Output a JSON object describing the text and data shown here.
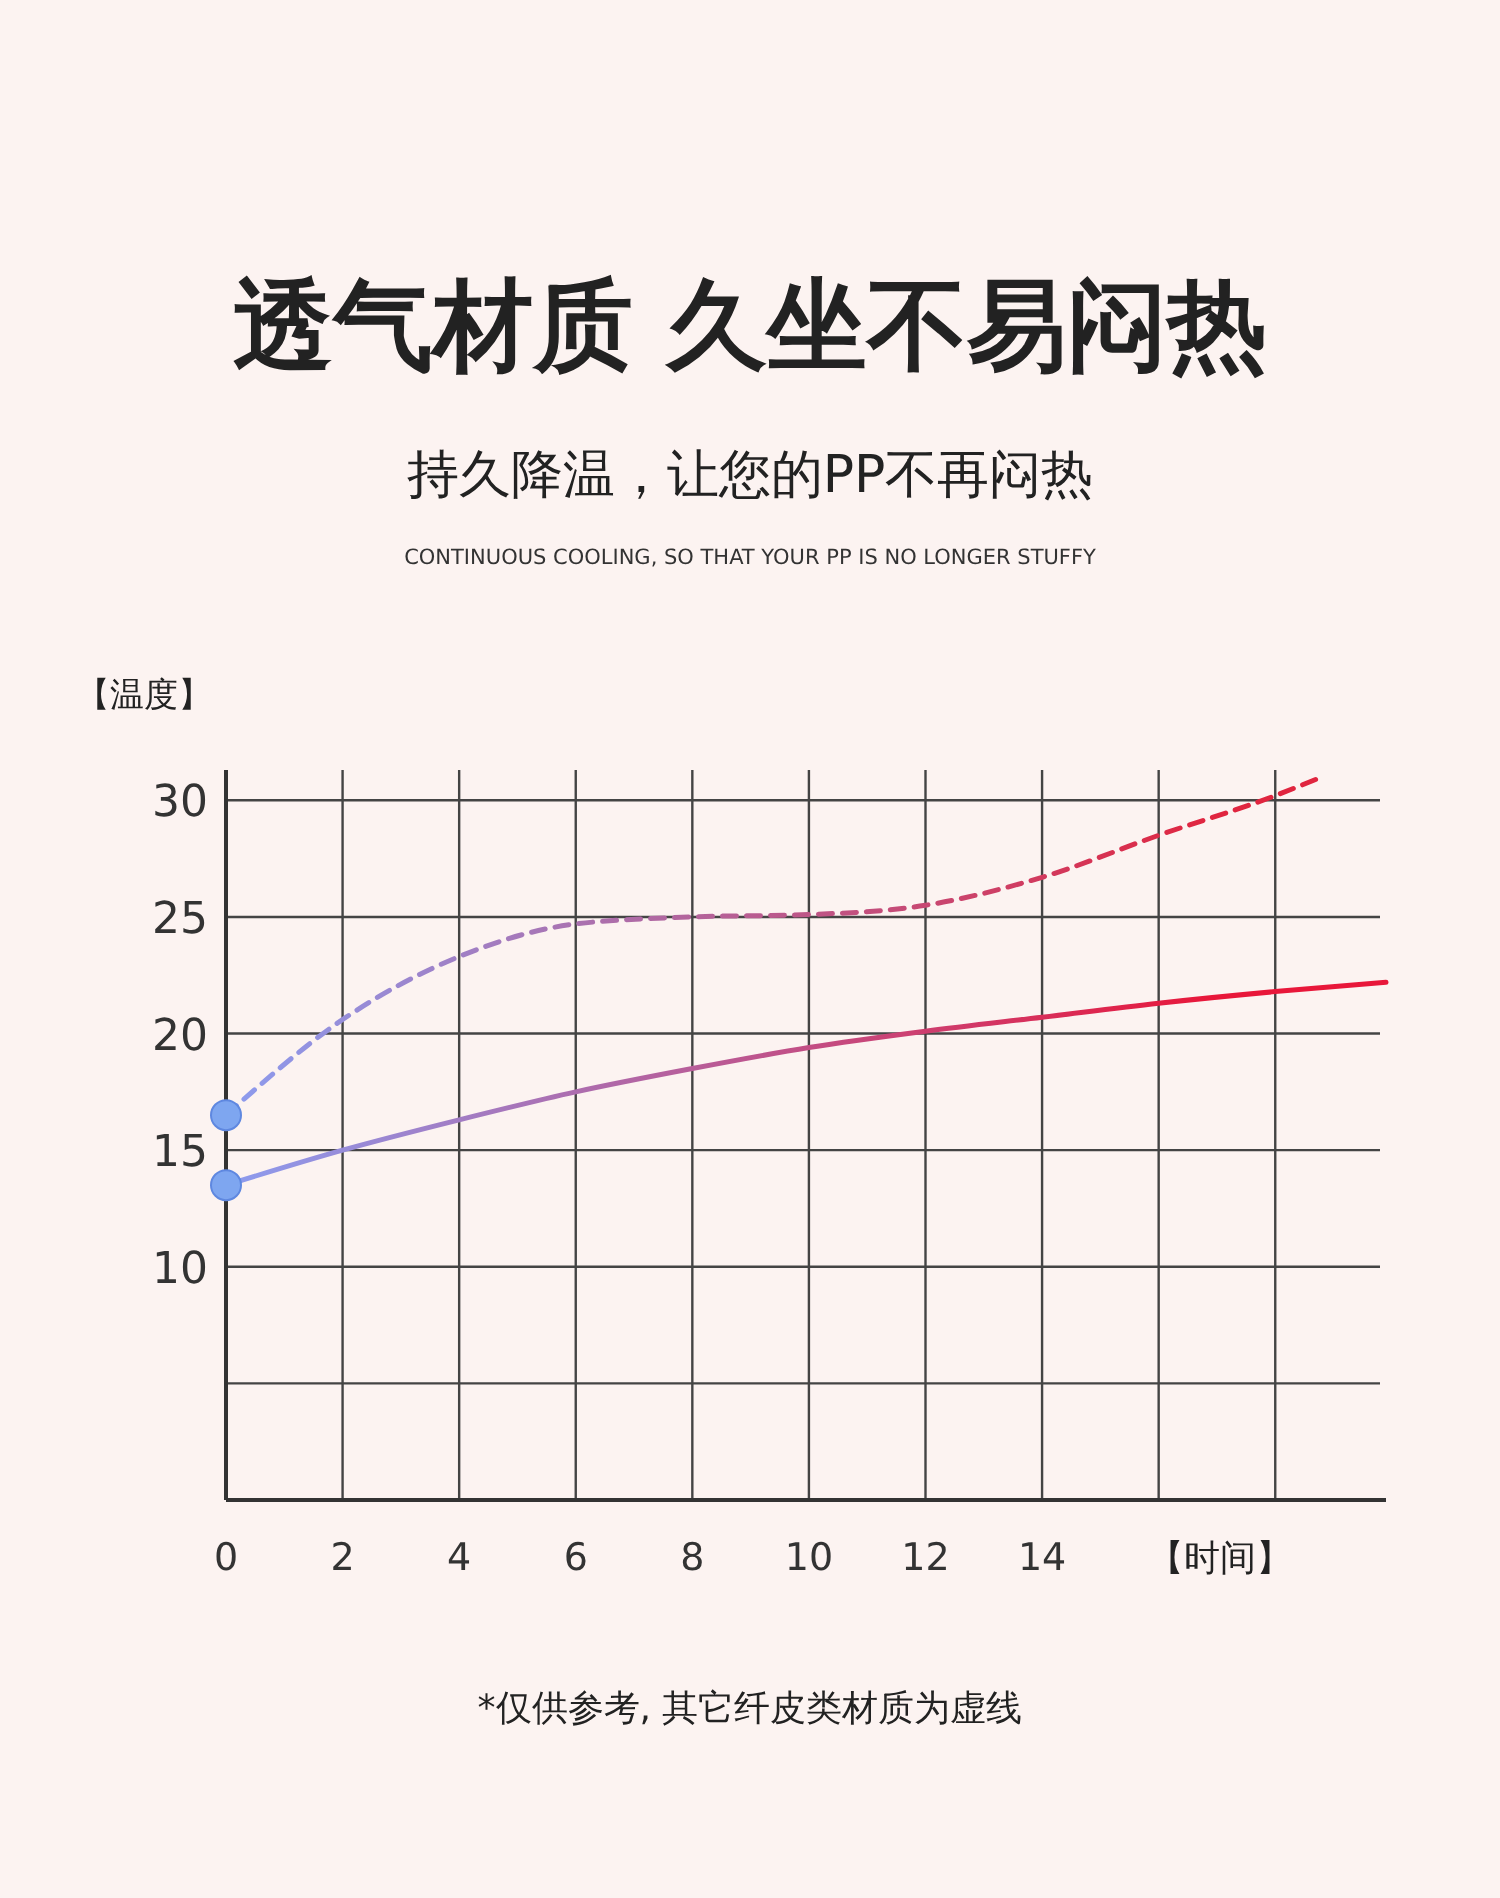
{
  "chart_data": {
    "type": "line",
    "title": "透气材质 久坐不易闷热",
    "subtitle": "持久降温，让您的PP不再闷热",
    "annotations": [
      "CONTINUOUS COOLING, SO THAT YOUR PP IS NO LONGER STUFFY",
      "*仅供参考, 其它纤皮类材质为虚线"
    ],
    "xlabel": "【时间】",
    "ylabel": "【温度】",
    "xlim": [
      0,
      19.9
    ],
    "ylim": [
      0,
      31.3
    ],
    "xticks": [
      0,
      2,
      4,
      6,
      8,
      10,
      12,
      14,
      {
        "value": 16,
        "label": null
      },
      {
        "value": 18,
        "label": null
      }
    ],
    "yticks": [
      {
        "value": 5,
        "label": null
      },
      10,
      15,
      20,
      25,
      30
    ],
    "grid": true,
    "series": [
      {
        "color": "#e0253f",
        "line_style": "dashed",
        "x": [
          0,
          2,
          4,
          6,
          8,
          10,
          12,
          14,
          16,
          18,
          18.7
        ],
        "values": [
          16.5,
          20.6,
          23.3,
          24.7,
          25,
          25.1,
          25.5,
          26.7,
          28.5,
          30.2,
          30.9
        ]
      },
      {
        "color": "#e8173a",
        "line_style": "solid",
        "x": [
          0,
          2,
          4,
          6,
          8,
          10,
          12,
          14,
          16,
          18,
          19.9
        ],
        "values": [
          13.5,
          15,
          16.3,
          17.5,
          18.5,
          19.4,
          20.1,
          20.7,
          21.3,
          21.8,
          22.2
        ]
      },
      {
        "type": "scatter",
        "color": "#7ea6f0",
        "marker": "circle",
        "x": [
          0,
          0
        ],
        "values": [
          16.5,
          13.5
        ]
      }
    ]
  }
}
